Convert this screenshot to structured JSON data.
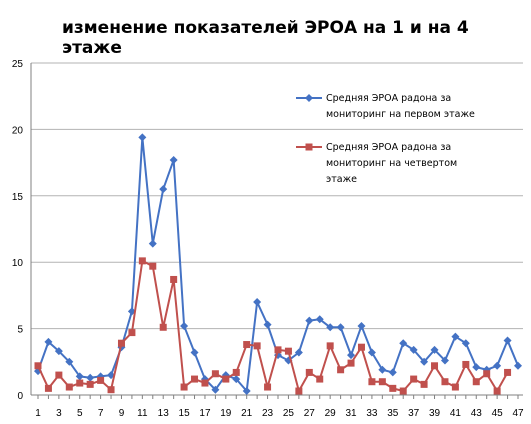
{
  "chart_data": {
    "type": "line",
    "title": "изменение показателей ЭРОА  на 1 и на 4 этаже",
    "xlabel": "",
    "ylabel": "",
    "ylim": [
      0,
      25
    ],
    "yticks": [
      0,
      5,
      10,
      15,
      20,
      25
    ],
    "x": [
      1,
      2,
      3,
      4,
      5,
      6,
      7,
      8,
      9,
      10,
      11,
      12,
      13,
      14,
      15,
      16,
      17,
      18,
      19,
      20,
      21,
      22,
      23,
      24,
      25,
      26,
      27,
      28,
      29,
      30,
      31,
      32,
      33,
      34,
      35,
      36,
      37,
      38,
      39,
      40,
      41,
      42,
      43,
      44,
      45,
      46,
      47
    ],
    "xtick_labels": [
      "1",
      "3",
      "5",
      "7",
      "9",
      "11",
      "13",
      "15",
      "17",
      "19",
      "21",
      "23",
      "25",
      "27",
      "29",
      "31",
      "33",
      "35",
      "37",
      "39",
      "41",
      "43",
      "45",
      "47"
    ],
    "grid": "horizontal",
    "legend_position": "right",
    "series": [
      {
        "name_lines": [
          "Средняя ЭРОА радона за",
          "мониторинг на первом этаже"
        ],
        "color": "#4472C4",
        "marker": "diamond",
        "values": [
          1.8,
          4.0,
          3.3,
          2.5,
          1.4,
          1.3,
          1.4,
          1.5,
          3.6,
          6.3,
          19.4,
          11.4,
          15.5,
          17.7,
          5.2,
          3.2,
          1.2,
          0.4,
          1.5,
          1.2,
          0.3,
          7.0,
          5.3,
          3.0,
          2.6,
          3.2,
          5.6,
          5.7,
          5.1,
          5.1,
          3.0,
          5.2,
          3.2,
          1.9,
          1.7,
          3.9,
          3.4,
          2.5,
          3.4,
          2.6,
          4.4,
          3.9,
          2.1,
          1.9,
          2.2,
          4.1,
          2.2
        ]
      },
      {
        "name_lines": [
          "Средняя ЭРОА радона за",
          "мониторинг на четвертом",
          "этаже"
        ],
        "color": "#C0504D",
        "marker": "square",
        "values": [
          2.2,
          0.5,
          1.5,
          0.6,
          0.9,
          0.8,
          1.1,
          0.4,
          3.9,
          4.7,
          10.1,
          9.7,
          5.1,
          8.7,
          0.6,
          1.2,
          0.9,
          1.6,
          1.2,
          1.7,
          3.8,
          3.7,
          0.6,
          3.4,
          3.3,
          0.3,
          1.7,
          1.2,
          3.7,
          1.9,
          2.4,
          3.6,
          1.0,
          1.0,
          0.5,
          0.3,
          1.2,
          0.8,
          2.2,
          1.0,
          0.6,
          2.3,
          1.0,
          1.6,
          0.3,
          1.7,
          null
        ]
      }
    ]
  }
}
